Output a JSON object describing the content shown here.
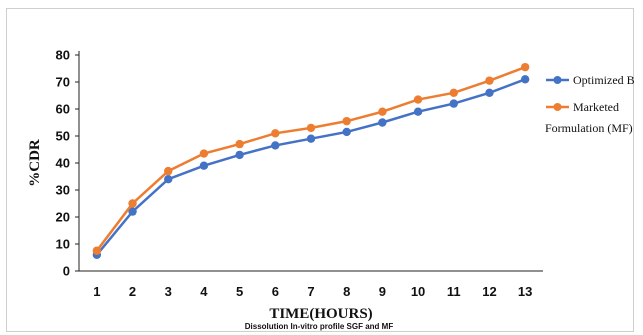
{
  "chart_data": {
    "type": "line",
    "title": "",
    "xlabel": "TIME(HOURS)",
    "ylabel": "%CDR",
    "caption": "Dissolution In-vitro profile SGF and MF",
    "x": [
      1,
      2,
      3,
      4,
      5,
      6,
      7,
      8,
      9,
      10,
      11,
      12,
      13
    ],
    "xticks": [
      "1",
      "2",
      "3",
      "4",
      "5",
      "6",
      "7",
      "8",
      "9",
      "10",
      "11",
      "12",
      "13"
    ],
    "yticks": [
      "0",
      "10",
      "20",
      "30",
      "40",
      "50",
      "60",
      "70",
      "80"
    ],
    "ylim": [
      0,
      80
    ],
    "grid": false,
    "legend_placement": "right",
    "series": [
      {
        "name": "Optimized Batch",
        "legend_lines": [
          "Optimized Batc"
        ],
        "color": "#4472c4",
        "values": [
          6,
          22,
          34,
          39,
          43,
          46.5,
          49,
          51.5,
          55,
          59,
          62,
          66,
          71
        ]
      },
      {
        "name": "Marketed Formulation (MF)",
        "legend_lines": [
          "Marketed",
          "Formulation (MF)"
        ],
        "color": "#ed7d31",
        "values": [
          7.5,
          25,
          37,
          43.5,
          47,
          51,
          53,
          55.5,
          59,
          63.5,
          66,
          70.5,
          75.5
        ]
      }
    ]
  }
}
